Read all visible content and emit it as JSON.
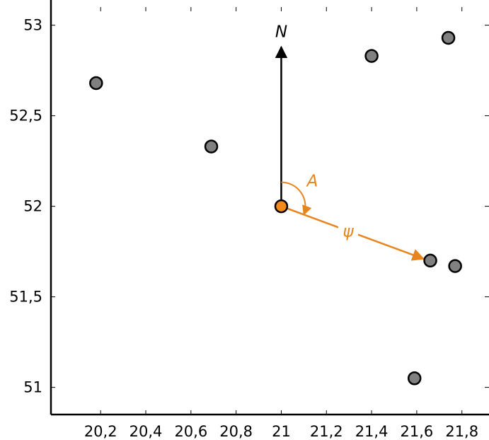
{
  "chart_data": {
    "type": "scatter",
    "title": "",
    "xlabel": "",
    "ylabel": "",
    "xlim": [
      19.98,
      21.92
    ],
    "ylim": [
      50.85,
      53.1
    ],
    "grid": false,
    "x_ticks": [
      20.2,
      20.4,
      20.6,
      20.8,
      21,
      21.2,
      21.4,
      21.6,
      21.8
    ],
    "x_tick_labels": [
      "20,2",
      "20,4",
      "20,6",
      "20,8",
      "21",
      "21,2",
      "21,4",
      "21,6",
      "21,8"
    ],
    "y_ticks": [
      51,
      51.5,
      52,
      52.5,
      53
    ],
    "y_tick_labels": [
      "51",
      "51,5",
      "52",
      "52,5",
      "53"
    ],
    "points": [
      {
        "x": 20.18,
        "y": 52.68
      },
      {
        "x": 20.69,
        "y": 52.33
      },
      {
        "x": 21.4,
        "y": 52.83
      },
      {
        "x": 21.74,
        "y": 52.93
      },
      {
        "x": 21.66,
        "y": 51.7
      },
      {
        "x": 21.77,
        "y": 51.67
      },
      {
        "x": 21.59,
        "y": 51.05
      }
    ],
    "reference_point": {
      "x": 21.0,
      "y": 52.0
    },
    "annotations": {
      "north_label": "N",
      "azimuth_label": "A",
      "distance_label": "ψ",
      "north_arrow_to": {
        "x": 21.0,
        "y": 52.88
      },
      "bearing_arrow_to": {
        "x": 21.63,
        "y": 51.71
      }
    },
    "colors": {
      "point_fill": "#808080",
      "point_stroke": "#000000",
      "reference_fill": "#f28a1d",
      "annotation": "#e8841c",
      "axis": "#000000"
    }
  }
}
